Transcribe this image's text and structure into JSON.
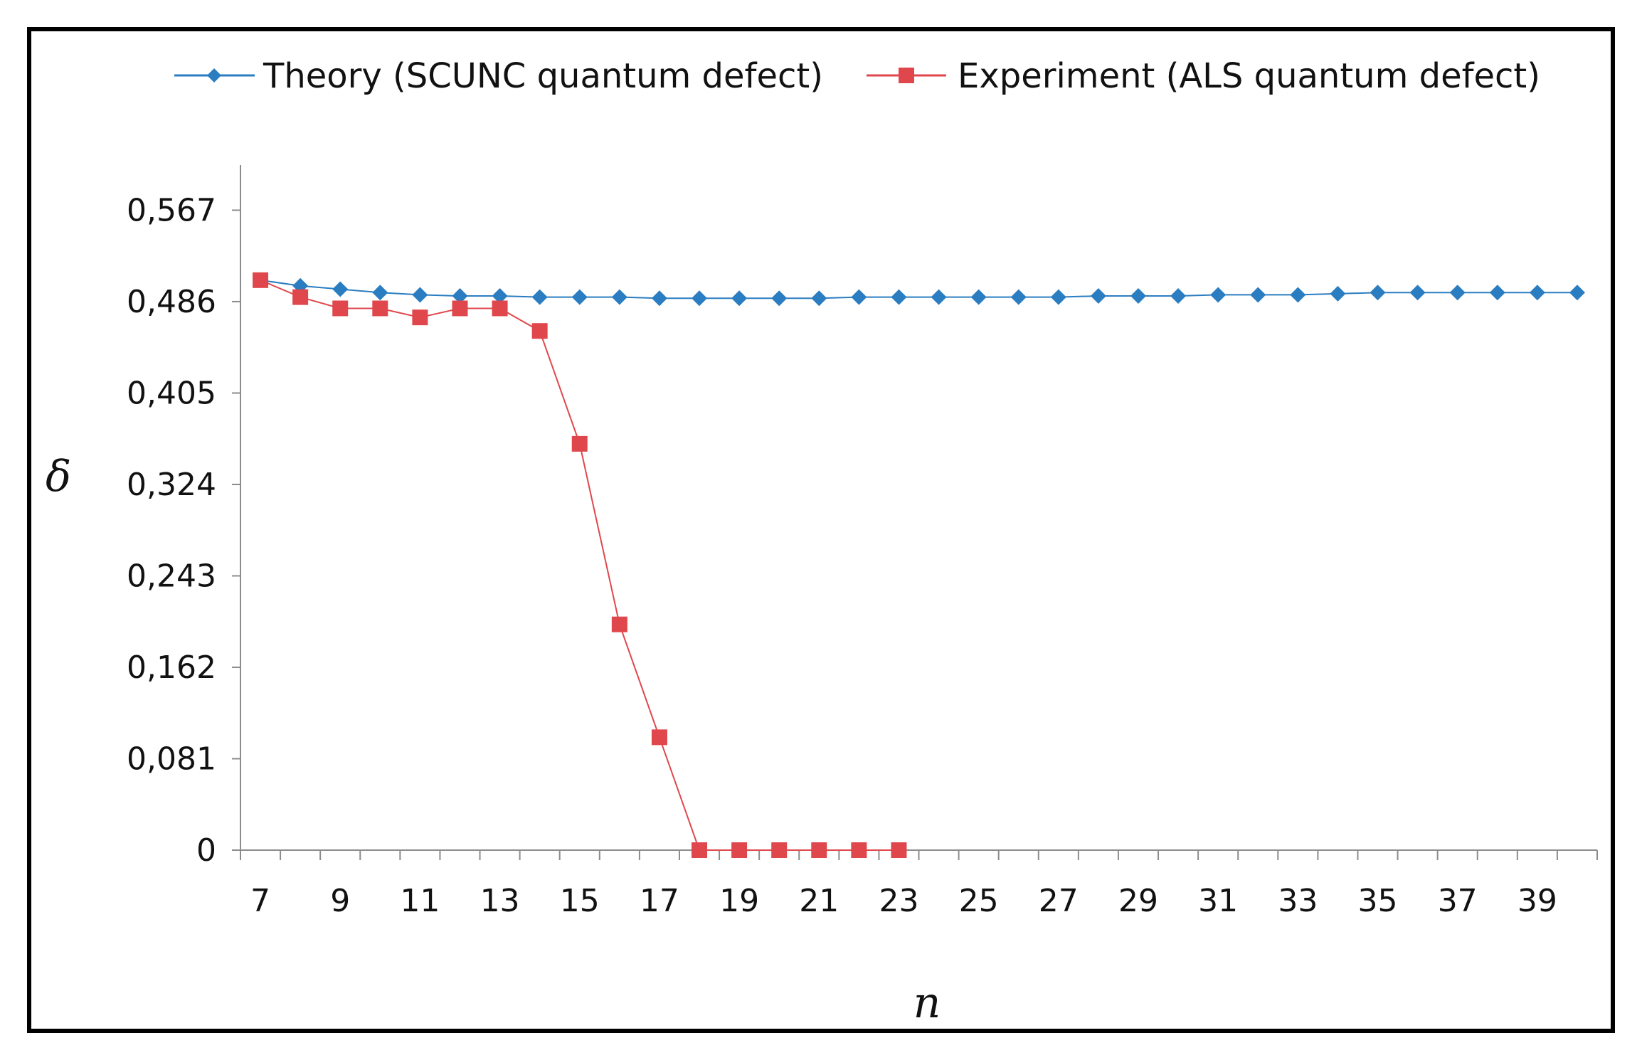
{
  "colors": {
    "theory": "#2b7dc1",
    "experiment": "#e0474c",
    "axis": "#8c8c8c"
  },
  "chart_data": {
    "type": "line",
    "title": "",
    "xlabel": "n",
    "ylabel": "δ",
    "x": [
      7,
      8,
      9,
      10,
      11,
      12,
      13,
      14,
      15,
      16,
      17,
      18,
      19,
      20,
      21,
      22,
      23,
      24,
      25,
      26,
      27,
      28,
      29,
      30,
      31,
      32,
      33,
      34,
      35,
      36,
      37,
      38,
      39,
      40
    ],
    "x_tick_labels": [
      "7",
      "9",
      "11",
      "13",
      "15",
      "17",
      "19",
      "21",
      "23",
      "25",
      "27",
      "29",
      "31",
      "33",
      "35",
      "37",
      "39"
    ],
    "y_tick_labels": [
      "0",
      "0,081",
      "0,162",
      "0,243",
      "0,324",
      "0,405",
      "0,486",
      "0,567"
    ],
    "ylim": [
      0,
      0.607
    ],
    "legend_position": "top",
    "series": [
      {
        "name": "Theory (SCUNC quantum defect)",
        "marker": "diamond",
        "x": [
          7,
          8,
          9,
          10,
          11,
          12,
          13,
          14,
          15,
          16,
          17,
          18,
          19,
          20,
          21,
          22,
          23,
          24,
          25,
          26,
          27,
          28,
          29,
          30,
          31,
          32,
          33,
          34,
          35,
          36,
          37,
          38,
          39,
          40
        ],
        "values": [
          0.505,
          0.5,
          0.497,
          0.494,
          0.492,
          0.491,
          0.491,
          0.49,
          0.49,
          0.49,
          0.489,
          0.489,
          0.489,
          0.489,
          0.489,
          0.49,
          0.49,
          0.49,
          0.49,
          0.49,
          0.49,
          0.491,
          0.491,
          0.491,
          0.492,
          0.492,
          0.492,
          0.493,
          0.494,
          0.494,
          0.494,
          0.494,
          0.494,
          0.494
        ]
      },
      {
        "name": "Experiment (ALS quantum defect)",
        "marker": "square",
        "x": [
          7,
          8,
          9,
          10,
          11,
          12,
          13,
          14,
          15,
          16,
          17,
          18,
          19,
          20,
          21,
          22,
          23
        ],
        "values": [
          0.505,
          0.49,
          0.48,
          0.48,
          0.472,
          0.48,
          0.48,
          0.46,
          0.36,
          0.2,
          0.1,
          0,
          0,
          0,
          0,
          0,
          0
        ]
      }
    ]
  }
}
